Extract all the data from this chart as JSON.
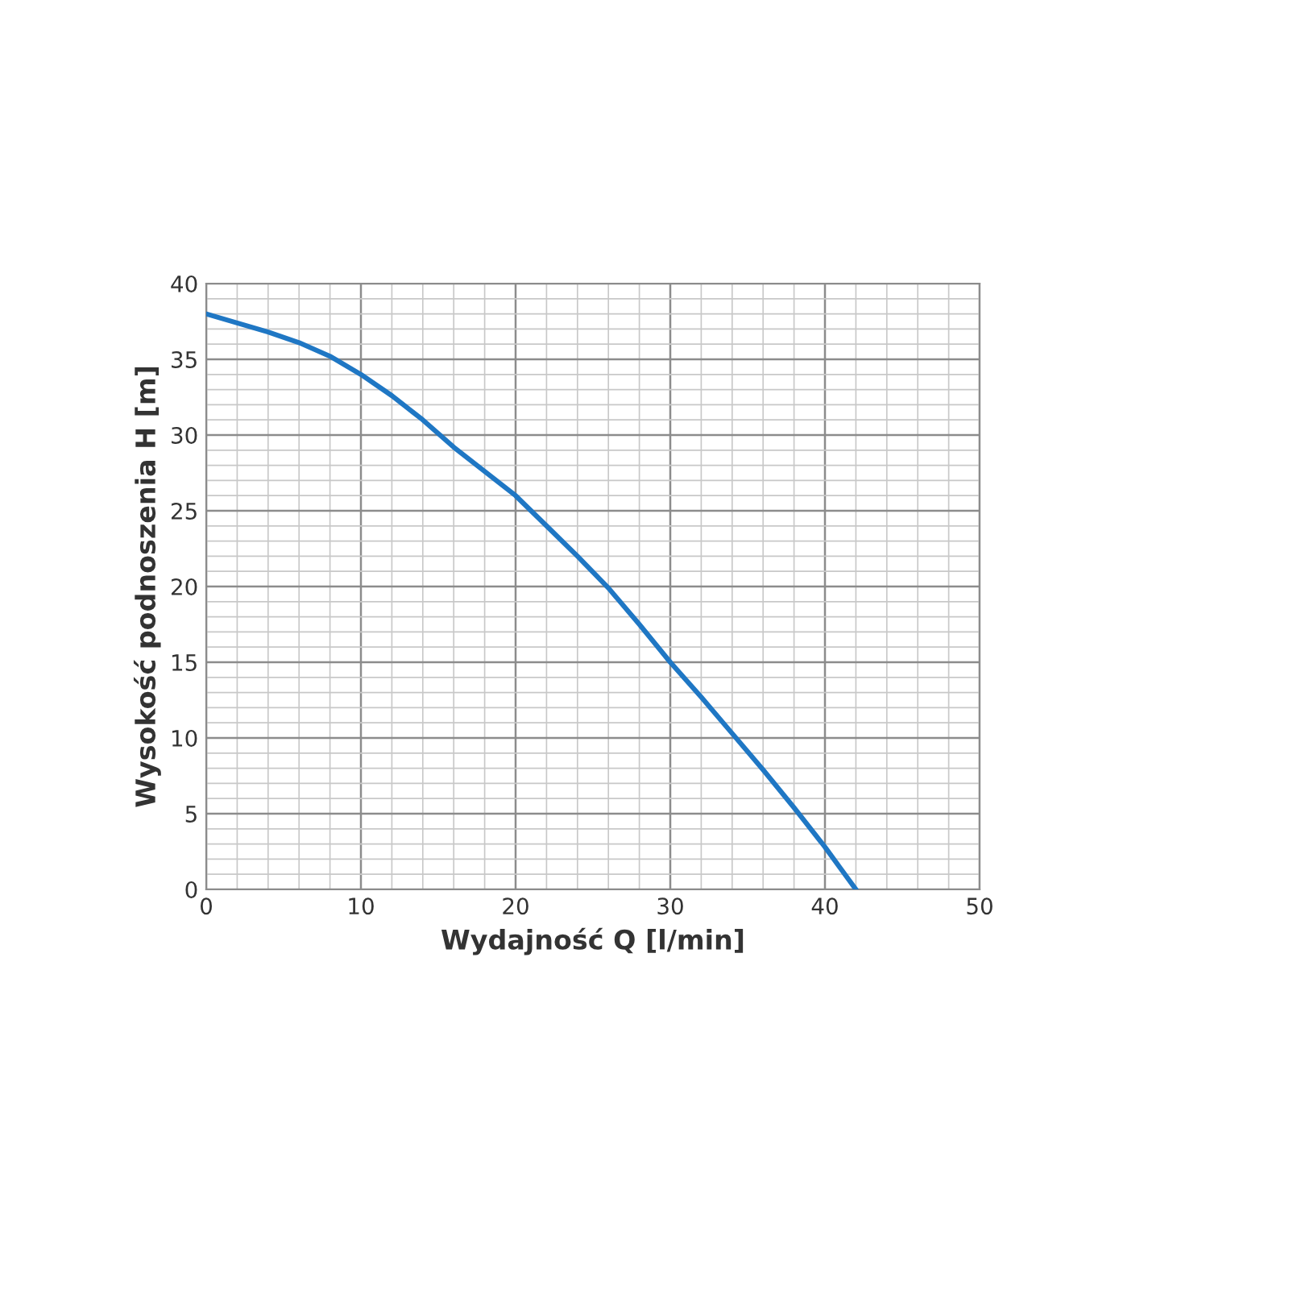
{
  "chart_data": {
    "type": "line",
    "xlabel": "Wydajność Q [l/min]",
    "ylabel": "Wysokość podnoszenia H [m]",
    "series": [
      {
        "color": "#1f77c4",
        "x": [
          0,
          2,
          4,
          6,
          8,
          10,
          12,
          14,
          16,
          18,
          20,
          22,
          24,
          26,
          28,
          30,
          32,
          34,
          36,
          38,
          40,
          41,
          42
        ],
        "values": [
          38,
          37.4,
          36.8,
          36.1,
          35.2,
          34,
          32.6,
          31,
          29.2,
          27.6,
          26,
          24,
          22,
          19.9,
          17.5,
          15,
          12.7,
          10.3,
          7.9,
          5.4,
          2.8,
          1.4,
          0
        ]
      }
    ],
    "xlim": [
      0,
      50
    ],
    "ylim": [
      0,
      40
    ],
    "xticks": [
      0,
      10,
      20,
      30,
      40,
      50
    ],
    "yticks": [
      0,
      5,
      10,
      15,
      20,
      25,
      30,
      35,
      40
    ],
    "grid": true,
    "marker": "none",
    "line_style": "solid"
  }
}
